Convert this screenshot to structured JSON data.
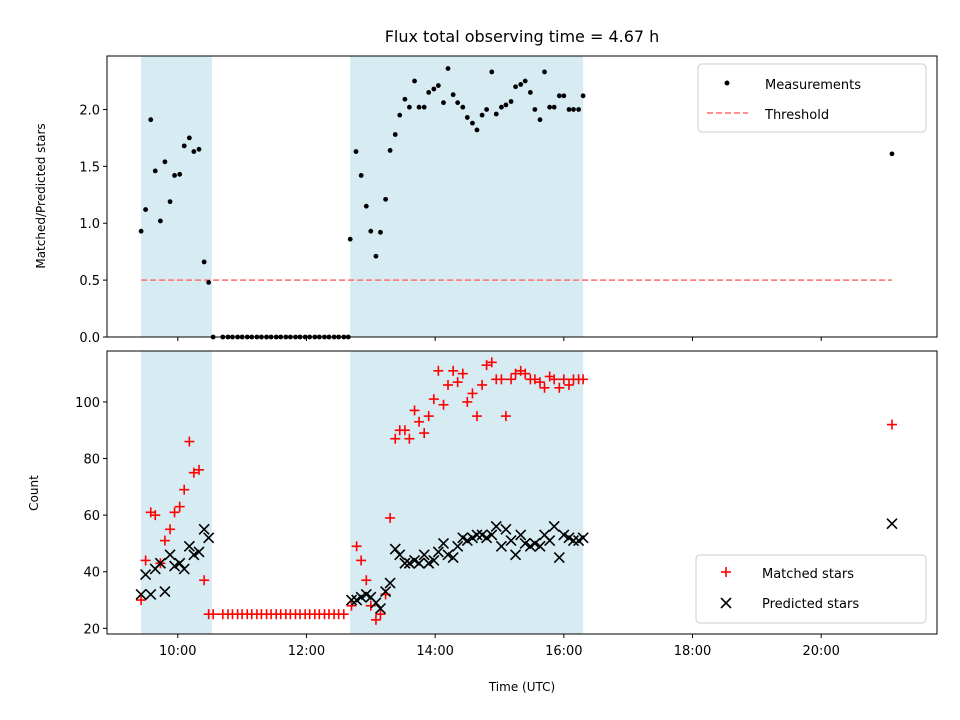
{
  "chart_data": [
    {
      "type": "scatter",
      "title": "Flux total observing time = 4.67 h",
      "ylabel": "Matched/Predicted stars",
      "xlabel": "",
      "xlim": [
        8.9,
        21.8
      ],
      "ylim": [
        0,
        2.47
      ],
      "yticks": [
        0.0,
        0.5,
        1.0,
        1.5,
        2.0
      ],
      "ytick_labels": [
        "0.0",
        "0.5",
        "1.0",
        "1.5",
        "2.0"
      ],
      "shaded_intervals": [
        [
          9.43,
          10.53
        ],
        [
          12.68,
          16.3
        ]
      ],
      "legend": {
        "position": "top-right",
        "entries": [
          "Measurements",
          "Threshold"
        ]
      },
      "threshold": {
        "name": "Threshold",
        "y": 0.5,
        "x": [
          9.43,
          21.1
        ],
        "color": "#ff7f7f"
      },
      "series": [
        {
          "name": "Measurements",
          "color": "#000000",
          "x": [
            9.43,
            9.5,
            9.58,
            9.65,
            9.73,
            9.8,
            9.88,
            9.95,
            10.03,
            10.1,
            10.18,
            10.25,
            10.33,
            10.41,
            10.48,
            10.55,
            10.7,
            10.78,
            10.85,
            10.93,
            11.0,
            11.08,
            11.15,
            11.23,
            11.3,
            11.38,
            11.45,
            11.53,
            11.6,
            11.68,
            11.75,
            11.83,
            11.9,
            11.98,
            12.05,
            12.13,
            12.2,
            12.28,
            12.35,
            12.43,
            12.5,
            12.58,
            12.65,
            12.68,
            12.77,
            12.85,
            12.93,
            13.0,
            13.08,
            13.15,
            13.23,
            13.3,
            13.38,
            13.45,
            13.53,
            13.6,
            13.68,
            13.75,
            13.83,
            13.9,
            13.98,
            14.05,
            14.13,
            14.2,
            14.28,
            14.35,
            14.43,
            14.5,
            14.58,
            14.65,
            14.73,
            14.8,
            14.88,
            14.95,
            15.03,
            15.1,
            15.18,
            15.25,
            15.33,
            15.4,
            15.48,
            15.55,
            15.63,
            15.7,
            15.78,
            15.85,
            15.93,
            16.0,
            16.08,
            16.15,
            16.23,
            16.3,
            21.1
          ],
          "y": [
            0.93,
            1.12,
            1.91,
            1.46,
            1.02,
            1.54,
            1.19,
            1.42,
            1.43,
            1.68,
            1.75,
            1.63,
            1.65,
            0.66,
            0.48,
            0.0,
            0.0,
            0.0,
            0.0,
            0.0,
            0.0,
            0.0,
            0.0,
            0.0,
            0.0,
            0.0,
            0.0,
            0.0,
            0.0,
            0.0,
            0.0,
            0.0,
            0.0,
            0.0,
            0.0,
            0.0,
            0.0,
            0.0,
            0.0,
            0.0,
            0.0,
            0.0,
            0.0,
            0.86,
            1.63,
            1.42,
            1.15,
            0.93,
            0.71,
            0.92,
            1.21,
            1.64,
            1.78,
            1.95,
            2.09,
            2.02,
            2.25,
            2.02,
            2.02,
            2.15,
            2.18,
            2.21,
            2.06,
            2.36,
            2.13,
            2.06,
            2.02,
            1.93,
            1.88,
            1.82,
            1.95,
            2.0,
            2.33,
            1.96,
            2.02,
            2.04,
            2.07,
            2.2,
            2.22,
            2.25,
            2.15,
            2.0,
            1.91,
            2.33,
            2.02,
            2.02,
            2.12,
            2.12,
            2.0,
            2.0,
            2.0,
            2.12,
            1.61
          ]
        }
      ]
    },
    {
      "type": "scatter",
      "title": "",
      "xlabel": "Time (UTC)",
      "ylabel": "Count",
      "xlim": [
        8.9,
        21.8
      ],
      "ylim": [
        18,
        118
      ],
      "xticks": [
        10,
        12,
        14,
        16,
        18,
        20
      ],
      "xtick_labels": [
        "10:00",
        "12:00",
        "14:00",
        "16:00",
        "18:00",
        "20:00"
      ],
      "yticks": [
        20,
        40,
        60,
        80,
        100
      ],
      "ytick_labels": [
        "20",
        "40",
        "60",
        "80",
        "100"
      ],
      "shaded_intervals": [
        [
          9.43,
          10.53
        ],
        [
          12.68,
          16.3
        ]
      ],
      "legend": {
        "position": "bottom-right",
        "entries": [
          "Matched stars",
          "Predicted stars"
        ]
      },
      "series": [
        {
          "name": "Matched stars",
          "marker": "+",
          "color": "#ff0000",
          "x": [
            9.43,
            9.5,
            9.58,
            9.65,
            9.73,
            9.8,
            9.88,
            9.95,
            10.03,
            10.1,
            10.18,
            10.25,
            10.33,
            10.41,
            10.48,
            10.55,
            10.7,
            10.78,
            10.85,
            10.93,
            11.0,
            11.08,
            11.15,
            11.23,
            11.3,
            11.38,
            11.45,
            11.53,
            11.6,
            11.68,
            11.75,
            11.83,
            11.9,
            11.98,
            12.05,
            12.13,
            12.2,
            12.28,
            12.35,
            12.43,
            12.5,
            12.58,
            12.7,
            12.78,
            12.85,
            12.93,
            13.0,
            13.08,
            13.15,
            13.23,
            13.3,
            13.38,
            13.45,
            13.53,
            13.6,
            13.68,
            13.75,
            13.83,
            13.9,
            13.98,
            14.05,
            14.13,
            14.2,
            14.28,
            14.35,
            14.43,
            14.5,
            14.58,
            14.65,
            14.73,
            14.8,
            14.88,
            14.95,
            15.03,
            15.1,
            15.18,
            15.25,
            15.33,
            15.4,
            15.48,
            15.55,
            15.63,
            15.7,
            15.78,
            15.85,
            15.93,
            16.0,
            16.08,
            16.15,
            16.23,
            16.3,
            21.1
          ],
          "y": [
            30,
            44,
            61,
            60,
            43,
            51,
            55,
            61,
            63,
            69,
            86,
            75,
            76,
            37,
            25,
            25,
            25,
            25,
            25,
            25,
            25,
            25,
            25,
            25,
            25,
            25,
            25,
            25,
            25,
            25,
            25,
            25,
            25,
            25,
            25,
            25,
            25,
            25,
            25,
            25,
            25,
            25,
            28,
            49,
            44,
            37,
            28,
            23,
            25,
            32,
            59,
            87,
            90,
            90,
            87,
            97,
            93,
            89,
            95,
            101,
            111,
            99,
            106,
            111,
            107,
            110,
            100,
            103,
            95,
            106,
            113,
            114,
            108,
            108,
            95,
            108,
            110,
            111,
            110,
            108,
            108,
            107,
            105,
            109,
            108,
            105,
            108,
            106,
            108,
            108,
            108,
            92
          ]
        },
        {
          "name": "Predicted stars",
          "marker": "x",
          "color": "#000000",
          "x": [
            9.43,
            9.5,
            9.58,
            9.65,
            9.73,
            9.8,
            9.88,
            9.95,
            10.03,
            10.1,
            10.18,
            10.25,
            10.33,
            10.41,
            10.48,
            12.7,
            12.78,
            12.85,
            12.93,
            13.0,
            13.08,
            13.15,
            13.23,
            13.3,
            13.38,
            13.45,
            13.53,
            13.6,
            13.68,
            13.75,
            13.83,
            13.9,
            13.98,
            14.05,
            14.13,
            14.2,
            14.28,
            14.35,
            14.43,
            14.5,
            14.58,
            14.65,
            14.73,
            14.8,
            14.88,
            14.95,
            15.03,
            15.1,
            15.18,
            15.25,
            15.33,
            15.4,
            15.48,
            15.55,
            15.63,
            15.7,
            15.78,
            15.85,
            15.93,
            16.0,
            16.08,
            16.15,
            16.23,
            16.3,
            21.1
          ],
          "y": [
            32,
            39,
            32,
            41,
            43,
            33,
            46,
            42,
            43,
            41,
            49,
            46,
            47,
            55,
            52,
            30,
            30,
            31,
            32,
            31,
            29,
            27,
            33,
            36,
            48,
            46,
            43,
            43,
            44,
            43,
            46,
            43,
            44,
            47,
            50,
            46,
            45,
            49,
            52,
            51,
            52,
            53,
            53,
            52,
            53,
            56,
            49,
            55,
            51,
            46,
            53,
            50,
            49,
            50,
            49,
            53,
            51,
            56,
            45,
            53,
            52,
            51,
            51,
            52,
            57
          ]
        }
      ]
    }
  ]
}
